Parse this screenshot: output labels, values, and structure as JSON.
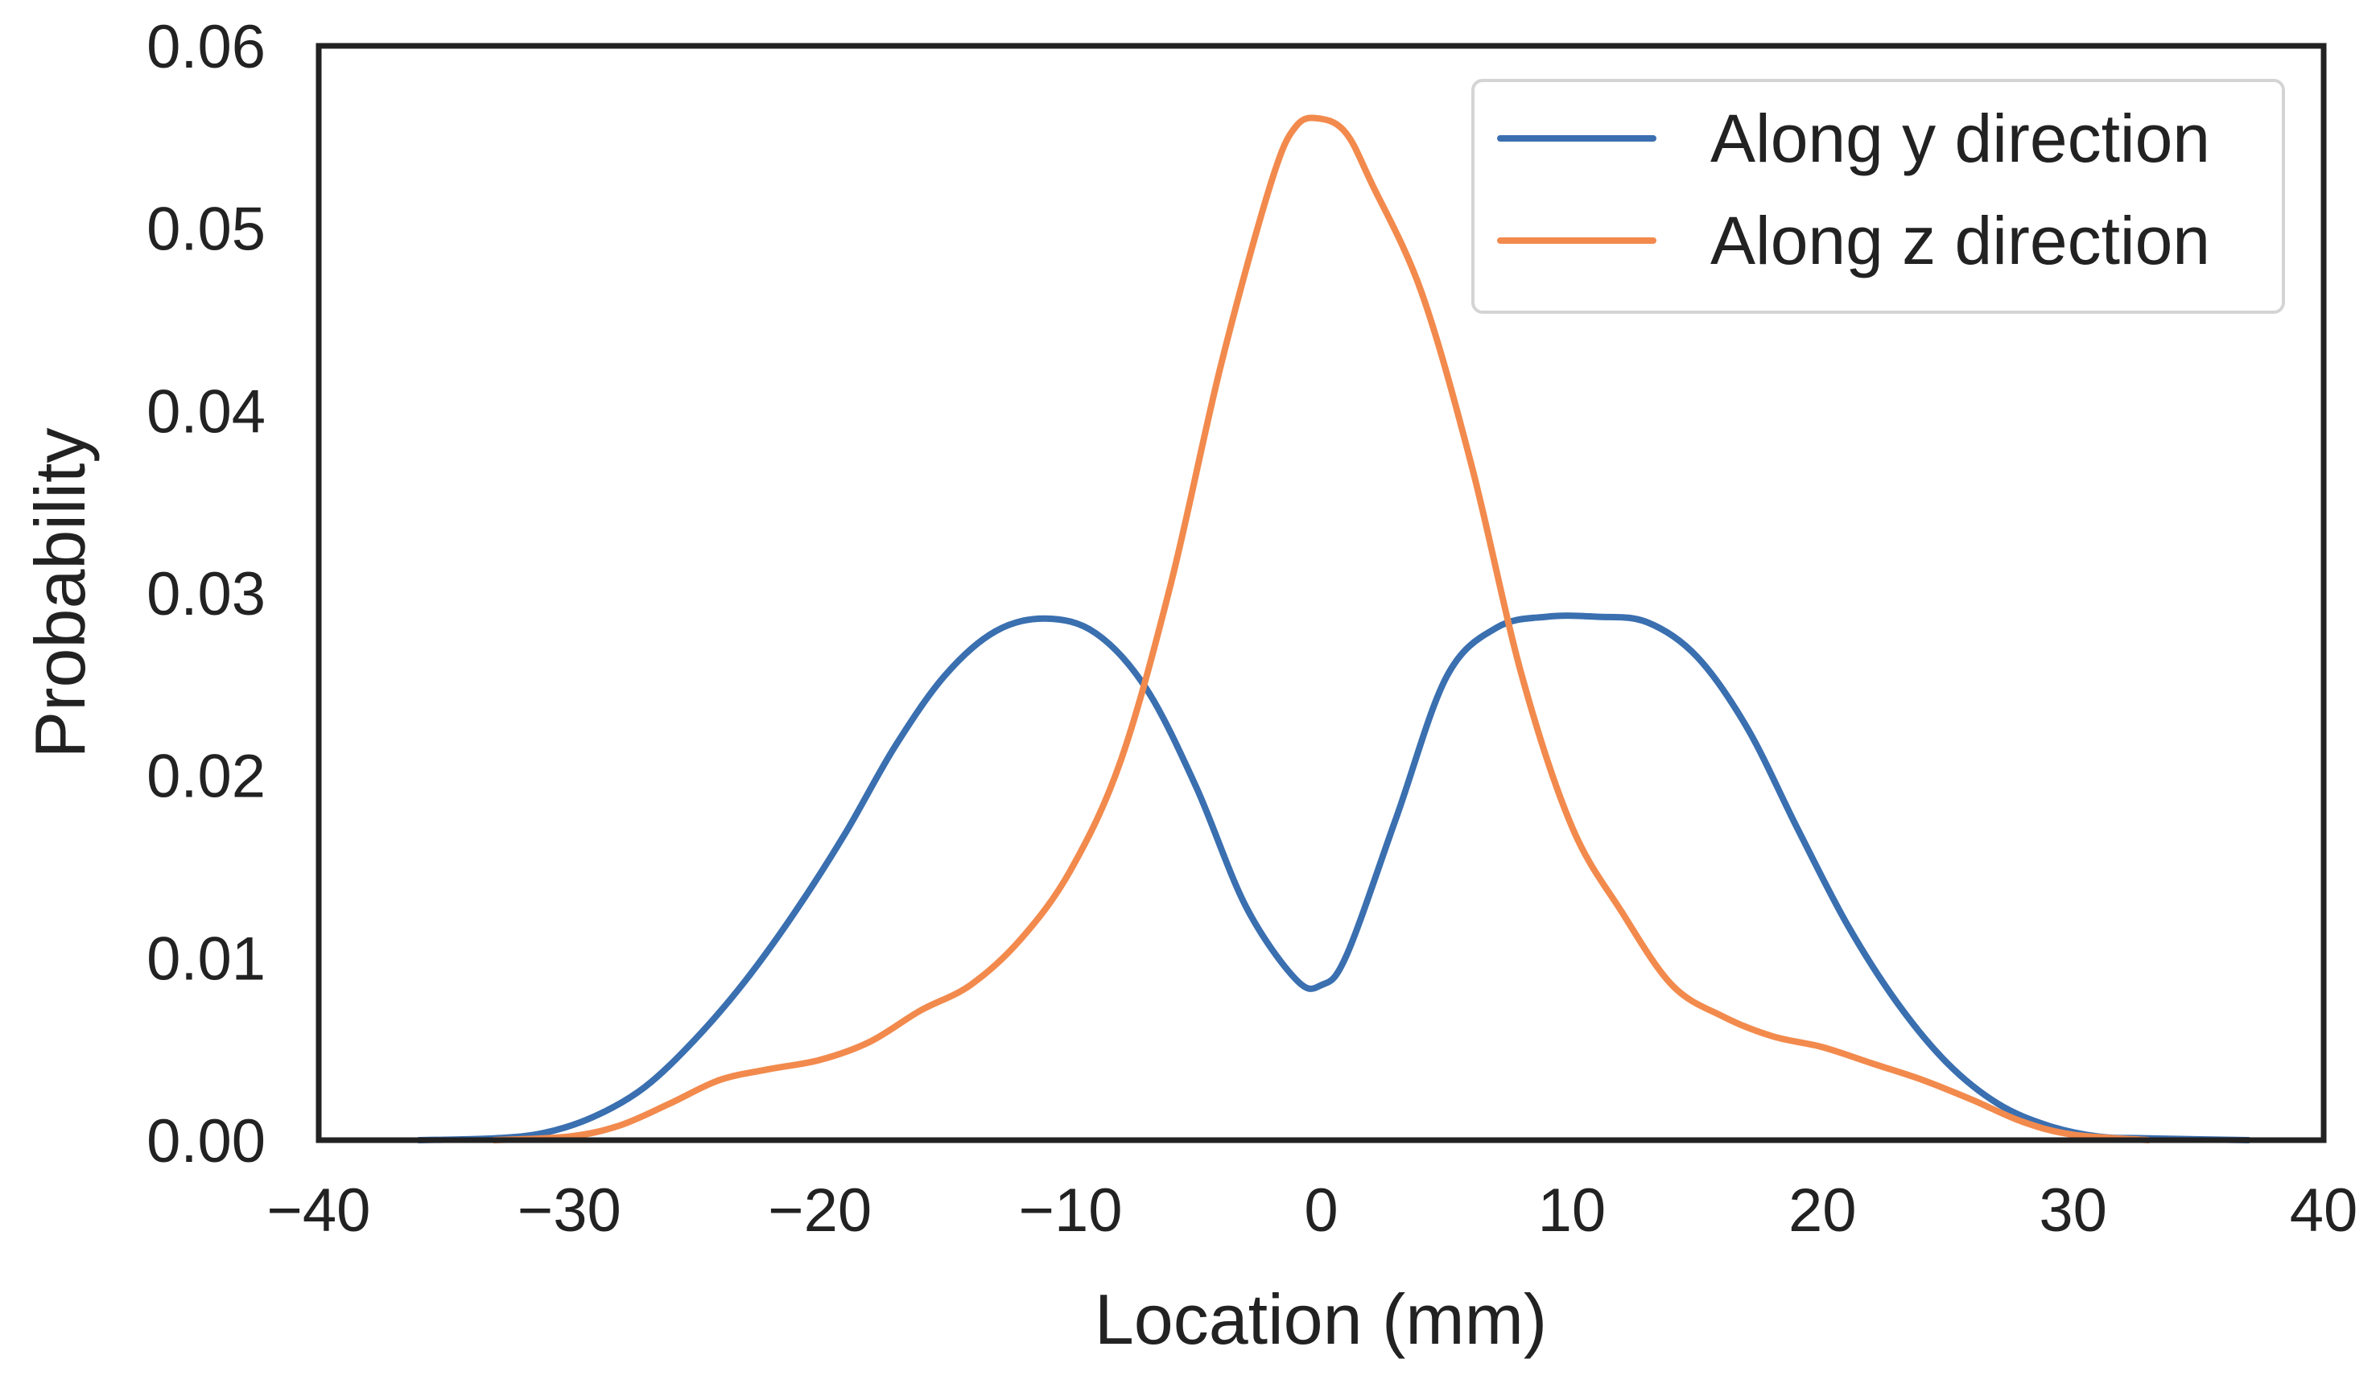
{
  "chart_data": {
    "type": "line",
    "title": "",
    "xlabel": "Location (mm)",
    "ylabel": "Probability",
    "xlim": [
      -40,
      40
    ],
    "ylim": [
      0,
      0.06
    ],
    "xticks": [
      -40,
      -30,
      -20,
      -10,
      0,
      10,
      20,
      30,
      40
    ],
    "xtick_labels": [
      "−40",
      "−30",
      "−20",
      "−10",
      "0",
      "10",
      "20",
      "30",
      "40"
    ],
    "yticks": [
      0,
      0.01,
      0.02,
      0.03,
      0.04,
      0.05,
      0.06
    ],
    "ytick_labels": [
      "0.00",
      "0.01",
      "0.02",
      "0.03",
      "0.04",
      "0.05",
      "0.06"
    ],
    "grid": false,
    "legend_position": "top-right",
    "series": [
      {
        "name": "Along y direction",
        "color": "#3a6fb0",
        "x": [
          -36,
          -33,
          -31,
          -29,
          -27,
          -25,
          -23,
          -21,
          -19,
          -17,
          -15,
          -13,
          -11,
          -9,
          -7,
          -5,
          -3,
          -1,
          0,
          1,
          3,
          5,
          7,
          9,
          11,
          13,
          15,
          17,
          19,
          21,
          23,
          25,
          27,
          29,
          31,
          33,
          37
        ],
        "y": [
          0.0,
          0.0001,
          0.0004,
          0.0013,
          0.0029,
          0.0055,
          0.0087,
          0.0125,
          0.0168,
          0.0216,
          0.0255,
          0.0279,
          0.0286,
          0.0278,
          0.0248,
          0.0194,
          0.0128,
          0.0088,
          0.0085,
          0.0101,
          0.0177,
          0.0254,
          0.0281,
          0.0287,
          0.0287,
          0.0284,
          0.0265,
          0.0226,
          0.0171,
          0.0118,
          0.0075,
          0.0042,
          0.002,
          0.0008,
          0.0002,
          0.0001,
          0.0
        ]
      },
      {
        "name": "Along z direction",
        "color": "#f28a4d",
        "x": [
          -33,
          -30,
          -28,
          -26,
          -24,
          -22,
          -20,
          -18,
          -16,
          -14,
          -12,
          -10,
          -8,
          -6,
          -4,
          -2,
          -1,
          0,
          1,
          2,
          4,
          6,
          8,
          10,
          12,
          14,
          16,
          18,
          20,
          22,
          24,
          26,
          28,
          30,
          33
        ],
        "y": [
          0.0,
          0.0002,
          0.0008,
          0.002,
          0.0033,
          0.0039,
          0.0044,
          0.0054,
          0.0071,
          0.0085,
          0.011,
          0.0148,
          0.0208,
          0.0305,
          0.0425,
          0.0525,
          0.0556,
          0.056,
          0.0552,
          0.0525,
          0.0465,
          0.037,
          0.0255,
          0.0172,
          0.0125,
          0.0085,
          0.0068,
          0.0057,
          0.0051,
          0.0042,
          0.0033,
          0.0022,
          0.001,
          0.0003,
          0.0
        ]
      }
    ]
  }
}
